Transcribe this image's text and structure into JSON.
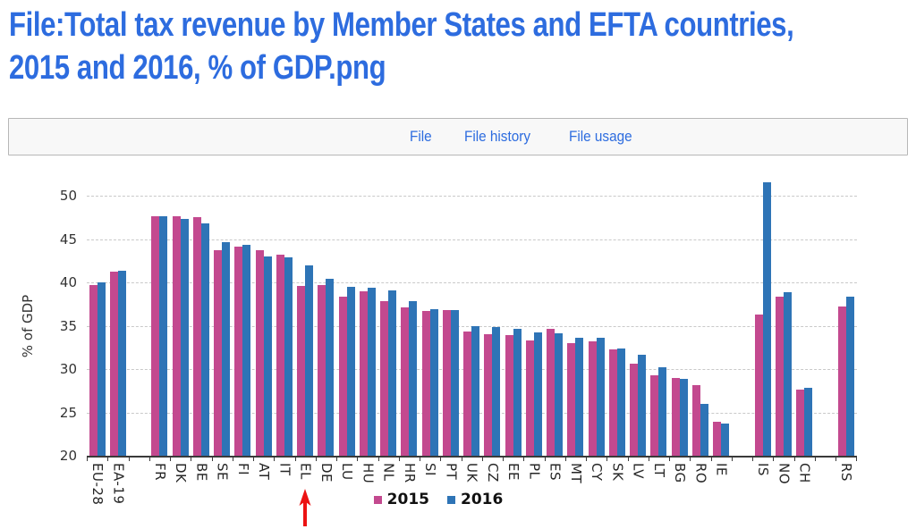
{
  "page": {
    "title_line1": "File:Total tax revenue by Member States and EFTA countries,",
    "title_line2": "2015 and 2016, % of GDP.png"
  },
  "tabs": {
    "items": [
      "File",
      "File history",
      "File usage"
    ]
  },
  "colors": {
    "title_blue": "#2D6CDF",
    "link_blue": "#2D6CDF",
    "series_2015": "#C3498F",
    "series_2016": "#2E74B6",
    "arrow_red": "#EC1212",
    "grid": "#C9C9C9",
    "axis_text": "#333333",
    "tabbar_bg": "#F8F8F8",
    "tabbar_border": "#B7B7B7"
  },
  "chart_data": {
    "type": "bar",
    "title": "Total tax revenue by Member States and EFTA countries, 2015 and 2016",
    "xlabel": "",
    "ylabel": "% of GDP",
    "ylim": [
      20,
      52.5
    ],
    "yticks": [
      20,
      25,
      30,
      35,
      40,
      45,
      50
    ],
    "grid": "dashed-horizontal",
    "legend_position": "bottom-center",
    "categories": [
      "EU-28",
      "EA-19",
      "FR",
      "DK",
      "BE",
      "SE",
      "FI",
      "AT",
      "IT",
      "EL",
      "DE",
      "LU",
      "HU",
      "NL",
      "HR",
      "SI",
      "PT",
      "UK",
      "CZ",
      "EE",
      "PL",
      "ES",
      "MT",
      "CY",
      "SK",
      "LV",
      "LT",
      "BG",
      "RO",
      "IE",
      "IS",
      "NO",
      "CH",
      "RS"
    ],
    "series": [
      {
        "name": "2015",
        "values": [
          39.7,
          41.2,
          47.6,
          47.6,
          47.5,
          43.7,
          44.1,
          43.7,
          43.2,
          39.6,
          39.7,
          38.4,
          39.0,
          37.8,
          37.1,
          36.7,
          36.8,
          34.3,
          34.0,
          33.9,
          33.3,
          34.6,
          33.0,
          33.2,
          32.3,
          30.6,
          29.3,
          29.0,
          28.1,
          23.9,
          36.3,
          38.3,
          27.6,
          37.2
        ]
      },
      {
        "name": "2016",
        "values": [
          40.0,
          41.3,
          47.6,
          47.3,
          46.8,
          44.6,
          44.3,
          43.0,
          42.9,
          42.0,
          40.4,
          39.5,
          39.4,
          39.1,
          37.8,
          36.9,
          36.8,
          35.0,
          34.8,
          34.6,
          34.2,
          34.1,
          33.6,
          33.6,
          32.4,
          31.6,
          30.2,
          28.9,
          26.0,
          23.7,
          51.5,
          38.9,
          27.8,
          38.4
        ]
      }
    ],
    "gaps_after": [
      "EA-19",
      "IE",
      "CH"
    ],
    "annotation": {
      "type": "arrow-up",
      "target": "EL",
      "color": "#EC1212"
    }
  }
}
